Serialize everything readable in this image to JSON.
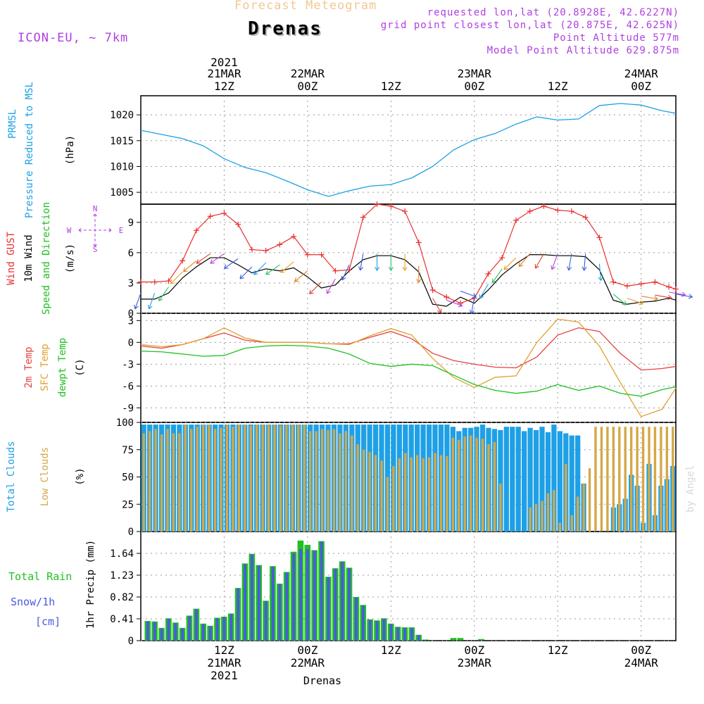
{
  "header": {
    "title": "Forecast Meteogram",
    "location": "Drenas",
    "model": "ICON-EU, ~ 7km",
    "requested": "requested lon,lat (20.8928E, 42.6227N)",
    "grid_point": "grid point closest lon,lat (20.875E, 42.625N)",
    "point_altitude": "Point Altitude 577m",
    "model_altitude": "Model Point Altitude 629.875m",
    "credit": "by Angel",
    "bottom_label": "Drenas"
  },
  "colors": {
    "pressure": "#1ea0e6",
    "gust": "#e83030",
    "wind": "#000000",
    "temp2m": "#e84040",
    "sfc": "#e0a030",
    "dewpt": "#20c020",
    "total_clouds": "#1ea0e6",
    "low_clouds": "#d4a848",
    "rain": "#20c020",
    "snow": "#4a5ae0",
    "purple": "#b040e0"
  },
  "time_axis": {
    "top_year": "2021",
    "bottom_year": "2021",
    "ticks": [
      {
        "hour": 12,
        "label": "12Z",
        "date": "21MAR"
      },
      {
        "hour": 24,
        "label": "00Z",
        "date": "22MAR"
      },
      {
        "hour": 36,
        "label": "12Z",
        "date": ""
      },
      {
        "hour": 48,
        "label": "00Z",
        "date": "23MAR"
      },
      {
        "hour": 60,
        "label": "12Z",
        "date": ""
      },
      {
        "hour": 72,
        "label": "00Z",
        "date": "24MAR"
      }
    ],
    "bottom_ticks": [
      {
        "hour": 12,
        "label": "12Z",
        "date": "21MAR"
      },
      {
        "hour": 24,
        "label": "00Z",
        "date": "22MAR"
      },
      {
        "hour": 36,
        "label": "12Z",
        "date": ""
      },
      {
        "hour": 48,
        "label": "00Z",
        "date": "23MAR"
      },
      {
        "hour": 60,
        "label": "12Z",
        "date": ""
      },
      {
        "hour": 72,
        "label": "00Z",
        "date": "24MAR"
      }
    ]
  },
  "panels": {
    "pressure": {
      "labels": [
        "PRMSL",
        "Pressure Reduced to MSL"
      ],
      "unit": "(hPa)",
      "ticks": [
        1005,
        1010,
        1015,
        1020
      ]
    },
    "wind": {
      "labels": [
        "Wind GUST",
        "10m Wind",
        "Speed and Direction"
      ],
      "unit": "(m/s)",
      "ticks": [
        0,
        3,
        6,
        9
      ],
      "compass": {
        "n": "N",
        "s": "S",
        "w": "W",
        "e": "E"
      }
    },
    "temp": {
      "labels": [
        "2m Temp",
        "SFC Temp",
        "dewpt Temp"
      ],
      "unit": "(C)",
      "ticks": [
        -9,
        -6,
        -3,
        0,
        3
      ]
    },
    "clouds": {
      "labels": [
        "Total Clouds",
        "Low Clouds"
      ],
      "unit": "(%)",
      "ticks": [
        0,
        25,
        50,
        75,
        100
      ]
    },
    "precip": {
      "labels": [
        "Total Rain",
        "Snow/1h",
        "[cm]"
      ],
      "unit": "1hr Precip (mm)",
      "ticks": [
        "0",
        "0.41",
        "0.82",
        "1.23",
        "1.64"
      ]
    }
  },
  "chart_data": [
    {
      "type": "line",
      "name": "pressure",
      "title": "PRMSL Pressure Reduced to MSL",
      "ylabel": "(hPa)",
      "x_hours": [
        0,
        3,
        6,
        9,
        12,
        15,
        18,
        21,
        24,
        27,
        30,
        33,
        36,
        39,
        42,
        45,
        48,
        51,
        54,
        57,
        60,
        63,
        66,
        69,
        72,
        75,
        77
      ],
      "values": [
        1017,
        1016.2,
        1015.4,
        1014.0,
        1011.5,
        1009.8,
        1008.8,
        1007.2,
        1005.5,
        1004.2,
        1005.3,
        1006.2,
        1006.5,
        1007.8,
        1010.0,
        1013.2,
        1015.2,
        1016.4,
        1018.2,
        1019.6,
        1019.0,
        1019.2,
        1021.8,
        1022.2,
        1021.9,
        1020.8,
        1020.3
      ],
      "ylim": [
        1002.7,
        1023.7
      ]
    },
    {
      "type": "line",
      "name": "wind",
      "title": "Wind GUST / 10m Wind Speed and Direction",
      "ylabel": "(m/s)",
      "x_hours": [
        0,
        2,
        4,
        6,
        8,
        10,
        12,
        14,
        16,
        18,
        20,
        22,
        24,
        26,
        28,
        30,
        32,
        34,
        36,
        38,
        40,
        42,
        44,
        46,
        48,
        50,
        52,
        54,
        56,
        58,
        60,
        62,
        64,
        66,
        68,
        70,
        72,
        74,
        76,
        77
      ],
      "series": [
        {
          "name": "Wind GUST",
          "values": [
            3.1,
            3.1,
            3.2,
            5.2,
            8.2,
            9.6,
            9.9,
            8.8,
            6.3,
            6.2,
            6.8,
            7.6,
            5.8,
            5.8,
            4.2,
            4.3,
            9.5,
            10.8,
            10.6,
            10.1,
            7.0,
            2.3,
            1.6,
            1.0,
            1.5,
            3.9,
            5.5,
            9.2,
            10.1,
            10.6,
            10.2,
            10.1,
            9.5,
            7.5,
            3.1,
            2.7,
            2.9,
            3.1,
            2.6,
            2.4
          ]
        },
        {
          "name": "10m Wind",
          "values": [
            1.4,
            1.4,
            2.0,
            3.5,
            4.6,
            5.5,
            5.5,
            4.8,
            4.0,
            4.4,
            4.2,
            4.5,
            3.6,
            2.5,
            2.8,
            4.2,
            5.3,
            5.7,
            5.7,
            5.3,
            4.1,
            0.9,
            0.7,
            1.6,
            1.0,
            2.3,
            3.8,
            4.9,
            5.8,
            5.8,
            5.7,
            5.7,
            5.6,
            4.3,
            1.3,
            0.9,
            1.1,
            1.2,
            1.5,
            1.3
          ]
        }
      ],
      "arrow_angles_deg": [
        200,
        200,
        215,
        225,
        230,
        235,
        235,
        235,
        225,
        225,
        235,
        230,
        230,
        225,
        210,
        205,
        190,
        180,
        180,
        180,
        180,
        150,
        110,
        110,
        190,
        210,
        215,
        225,
        220,
        210,
        200,
        190,
        185,
        175,
        130,
        110,
        100,
        100,
        100,
        100
      ],
      "ylim": [
        0,
        10.8
      ]
    },
    {
      "type": "line",
      "name": "temperature",
      "title": "2m Temp / SFC Temp / dewpt Temp",
      "ylabel": "(C)",
      "x_hours": [
        0,
        3,
        6,
        9,
        12,
        15,
        18,
        21,
        24,
        27,
        30,
        33,
        36,
        39,
        42,
        45,
        48,
        51,
        54,
        57,
        60,
        63,
        66,
        69,
        72,
        75,
        77
      ],
      "series": [
        {
          "name": "2m Temp",
          "values": [
            -0.5,
            -0.8,
            -0.3,
            0.5,
            1.3,
            0.3,
            0.0,
            0.0,
            0.0,
            -0.2,
            -0.2,
            0.7,
            1.5,
            0.5,
            -1.5,
            -2.5,
            -3.0,
            -3.4,
            -3.5,
            -2.0,
            1.0,
            2.0,
            1.5,
            -1.5,
            -3.8,
            -3.6,
            -3.3
          ]
        },
        {
          "name": "SFC Temp",
          "values": [
            -0.3,
            -0.6,
            -0.3,
            0.5,
            2.0,
            0.6,
            0.0,
            0.0,
            0.0,
            -0.2,
            -0.3,
            0.9,
            1.9,
            1.0,
            -2.2,
            -4.8,
            -6.2,
            -4.8,
            -4.6,
            0.0,
            3.2,
            2.8,
            -0.5,
            -5.5,
            -10.2,
            -9.2,
            -6.3
          ]
        },
        {
          "name": "dewpt Temp",
          "values": [
            -1.2,
            -1.3,
            -1.6,
            -1.9,
            -1.8,
            -0.8,
            -0.5,
            -0.4,
            -0.5,
            -0.8,
            -1.6,
            -2.9,
            -3.3,
            -3.0,
            -3.2,
            -4.5,
            -5.8,
            -6.6,
            -7.0,
            -6.7,
            -5.8,
            -6.6,
            -6.0,
            -7.0,
            -7.4,
            -6.5,
            -6.1
          ]
        }
      ],
      "ylim": [
        -11,
        4
      ]
    },
    {
      "type": "bar",
      "name": "clouds",
      "title": "Total Clouds / Low Clouds",
      "ylabel": "(%)",
      "series": [
        {
          "name": "Total Clouds",
          "values": [
            98,
            98,
            98,
            98,
            98,
            98,
            98,
            98,
            98,
            98,
            98,
            98,
            98,
            98,
            98,
            98,
            98,
            98,
            98,
            98,
            98,
            98,
            98,
            98,
            98,
            98,
            98,
            98,
            98,
            98,
            98,
            98,
            98,
            98,
            98,
            98,
            98,
            98,
            98,
            98,
            98,
            98,
            98,
            98,
            98,
            98,
            98,
            98,
            98,
            98,
            98,
            98,
            96,
            92,
            95,
            95,
            96,
            98,
            95,
            94,
            93,
            96,
            96,
            96,
            92,
            95,
            93,
            96,
            91,
            98,
            92,
            90,
            88,
            88,
            44,
            0,
            0,
            0,
            0,
            22,
            25,
            30,
            52,
            42,
            8,
            62,
            15,
            42,
            48,
            60
          ]
        },
        {
          "name": "Low Clouds",
          "values": [
            90,
            92,
            94,
            89,
            94,
            90,
            90,
            98,
            94,
            96,
            98,
            98,
            94,
            95,
            98,
            96,
            98,
            98,
            97,
            98,
            98,
            98,
            98,
            97,
            98,
            98,
            98,
            98,
            92,
            92,
            94,
            93,
            94,
            90,
            92,
            88,
            80,
            75,
            73,
            70,
            65,
            50,
            60,
            67,
            72,
            68,
            70,
            67,
            68,
            72,
            70,
            69,
            86,
            84,
            87,
            88,
            86,
            85,
            80,
            82,
            44,
            0,
            0,
            0,
            0,
            22,
            25,
            28,
            35,
            38,
            8,
            62,
            15,
            32,
            44,
            58,
            96,
            96,
            96,
            96,
            96,
            96,
            96,
            96,
            96,
            96,
            96,
            96,
            96,
            96
          ]
        }
      ],
      "ylim": [
        0,
        100
      ]
    },
    {
      "type": "bar",
      "name": "precipitation",
      "title": "1hr Precip (mm)",
      "ylabel": "1hr Precip (mm)",
      "series": [
        {
          "name": "Total Rain",
          "values": [
            0.37,
            0.36,
            0.24,
            0.42,
            0.34,
            0.24,
            0.47,
            0.6,
            0.32,
            0.28,
            0.43,
            0.45,
            0.51,
            0.99,
            1.45,
            1.63,
            1.42,
            0.75,
            1.4,
            1.07,
            1.29,
            1.67,
            1.88,
            1.8,
            1.7,
            1.87,
            1.2,
            1.36,
            1.49,
            1.37,
            0.82,
            0.67,
            0.4,
            0.38,
            0.42,
            0.32,
            0.26,
            0.25,
            0.25,
            0.11,
            0.02,
            0.01,
            0.0,
            0.0,
            0.05,
            0.05,
            0.0,
            0.0,
            0.03,
            0.0
          ]
        },
        {
          "name": "Snow/1h",
          "values": [
            0.36,
            0.35,
            0.23,
            0.41,
            0.33,
            0.23,
            0.46,
            0.59,
            0.31,
            0.27,
            0.42,
            0.44,
            0.5,
            0.98,
            1.44,
            1.62,
            1.41,
            0.74,
            1.39,
            1.06,
            1.28,
            1.64,
            1.72,
            1.72,
            1.69,
            1.86,
            1.19,
            1.35,
            1.48,
            1.36,
            0.81,
            0.66,
            0.39,
            0.37,
            0.41,
            0.31,
            0.25,
            0.24,
            0.24,
            0.1,
            0.0,
            0.0,
            0.0,
            0.0,
            0.0,
            0.0,
            0.0,
            0.0,
            0.0,
            0.0
          ]
        }
      ],
      "ylim": [
        0,
        2.05
      ]
    }
  ]
}
